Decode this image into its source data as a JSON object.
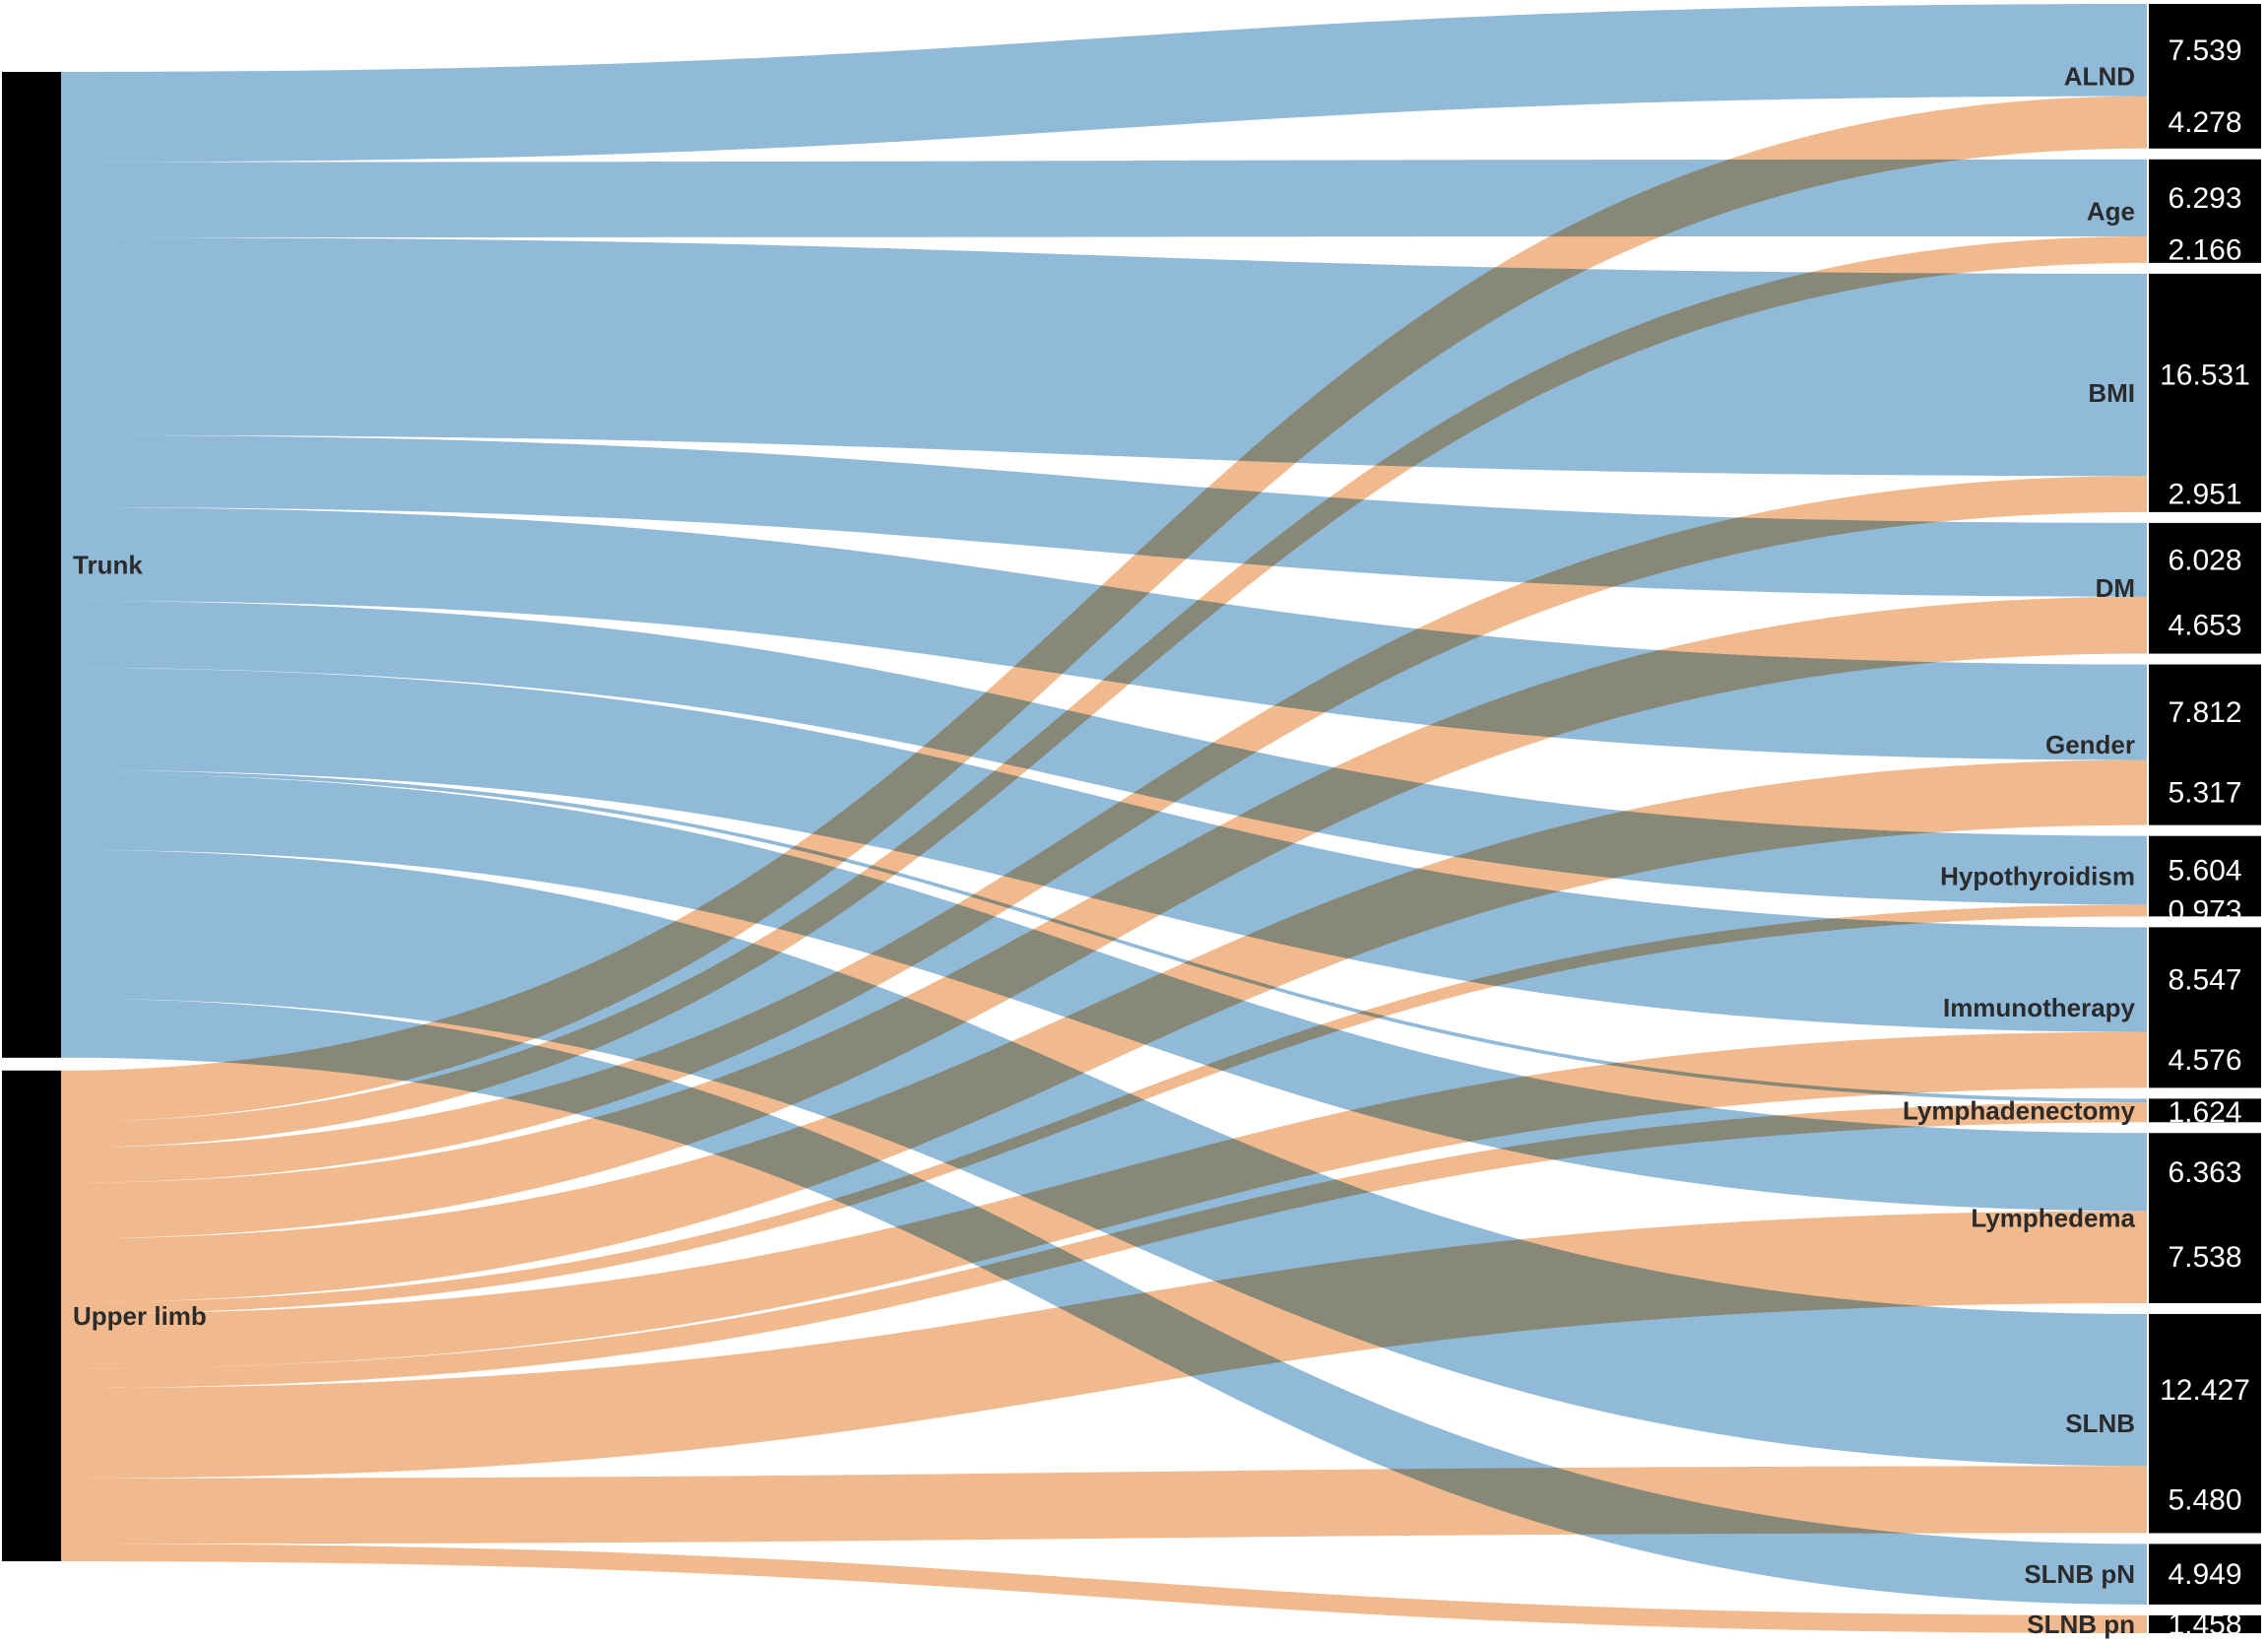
{
  "chart_data": {
    "type": "sankey",
    "colors": {
      "trunk": "#8AB6D6",
      "upper_limb": "#F0B688",
      "node": "#000000",
      "value_text": "#FFFFFF"
    },
    "sources": [
      {
        "id": "trunk",
        "label": "Trunk"
      },
      {
        "id": "upper_limb",
        "label": "Upper limb"
      }
    ],
    "targets": [
      {
        "id": "alnd",
        "label": "ALND"
      },
      {
        "id": "age",
        "label": "Age"
      },
      {
        "id": "bmi",
        "label": "BMI"
      },
      {
        "id": "dm",
        "label": "DM"
      },
      {
        "id": "gender",
        "label": "Gender"
      },
      {
        "id": "hypothyroidism",
        "label": "Hypothyroidism"
      },
      {
        "id": "immunotherapy",
        "label": "Immunotherapy"
      },
      {
        "id": "lymphadenectomy",
        "label": "Lymphadenectomy"
      },
      {
        "id": "lymphedema",
        "label": "Lymphedema"
      },
      {
        "id": "slnb",
        "label": "SLNB"
      },
      {
        "id": "slnb_pn_upper",
        "label": "SLNB pN"
      },
      {
        "id": "slnb_pn_lower",
        "label": "SLNB pn"
      }
    ],
    "links": [
      {
        "source": "trunk",
        "target": "alnd",
        "value": 7.539,
        "label": "7.539"
      },
      {
        "source": "upper_limb",
        "target": "alnd",
        "value": 4.278,
        "label": "4.278"
      },
      {
        "source": "trunk",
        "target": "age",
        "value": 6.293,
        "label": "6.293"
      },
      {
        "source": "upper_limb",
        "target": "age",
        "value": 2.166,
        "label": "2.166"
      },
      {
        "source": "trunk",
        "target": "bmi",
        "value": 16.531,
        "label": "16.531"
      },
      {
        "source": "upper_limb",
        "target": "bmi",
        "value": 2.951,
        "label": "2.951"
      },
      {
        "source": "trunk",
        "target": "dm",
        "value": 6.028,
        "label": "6.028"
      },
      {
        "source": "upper_limb",
        "target": "dm",
        "value": 4.653,
        "label": "4.653"
      },
      {
        "source": "trunk",
        "target": "gender",
        "value": 7.812,
        "label": "7.812"
      },
      {
        "source": "upper_limb",
        "target": "gender",
        "value": 5.317,
        "label": "5.317"
      },
      {
        "source": "trunk",
        "target": "hypothyroidism",
        "value": 5.604,
        "label": "5.604"
      },
      {
        "source": "upper_limb",
        "target": "hypothyroidism",
        "value": 0.973,
        "label": "0.973"
      },
      {
        "source": "trunk",
        "target": "immunotherapy",
        "value": 8.547,
        "label": "8.547"
      },
      {
        "source": "upper_limb",
        "target": "immunotherapy",
        "value": 4.576,
        "label": "4.576"
      },
      {
        "source": "trunk",
        "target": "lymphadenectomy",
        "value": 0.3,
        "label": ""
      },
      {
        "source": "upper_limb",
        "target": "lymphadenectomy",
        "value": 1.624,
        "label": "1.624"
      },
      {
        "source": "trunk",
        "target": "lymphedema",
        "value": 6.363,
        "label": "6.363"
      },
      {
        "source": "upper_limb",
        "target": "lymphedema",
        "value": 7.538,
        "label": "7.538"
      },
      {
        "source": "trunk",
        "target": "slnb",
        "value": 12.427,
        "label": "12.427"
      },
      {
        "source": "upper_limb",
        "target": "slnb",
        "value": 5.48,
        "label": "5.480"
      },
      {
        "source": "trunk",
        "target": "slnb_pn_upper",
        "value": 4.949,
        "label": "4.949"
      },
      {
        "source": "upper_limb",
        "target": "slnb_pn_lower",
        "value": 1.458,
        "label": "1.458"
      }
    ]
  }
}
